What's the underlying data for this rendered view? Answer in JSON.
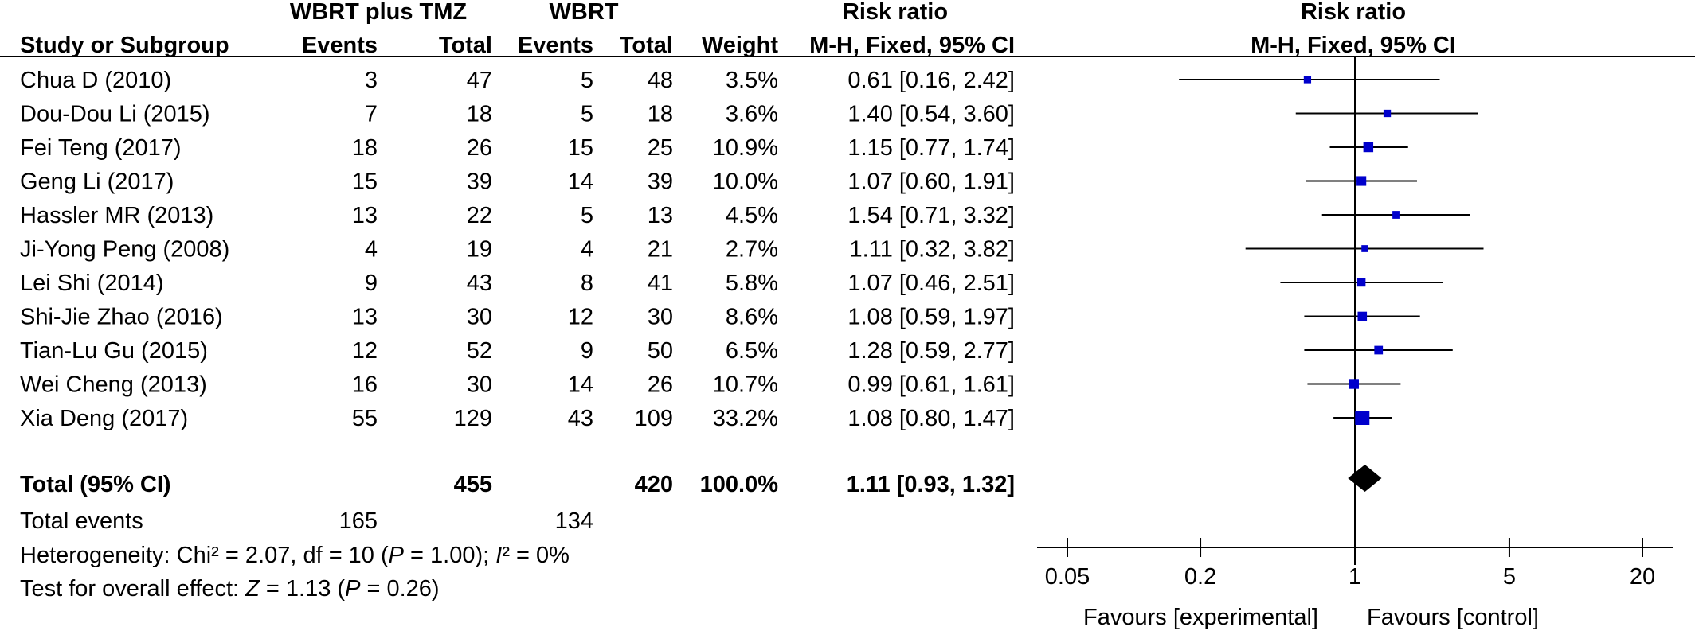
{
  "header": {
    "group1": "WBRT plus TMZ",
    "group2": "WBRT",
    "rr_table": "Risk ratio",
    "rr_plot": "Risk ratio",
    "study": "Study or Subgroup",
    "events1": "Events",
    "total1": "Total",
    "events2": "Events",
    "total2": "Total",
    "weight": "Weight",
    "method_table": "M-H, Fixed, 95% CI",
    "method_plot": "M-H, Fixed, 95% CI"
  },
  "chart_data": {
    "type": "forest",
    "x_scale": "log",
    "xlim": [
      0.05,
      20
    ],
    "ticks": [
      {
        "value": 0.05,
        "label": "0.05"
      },
      {
        "value": 0.2,
        "label": "0.2"
      },
      {
        "value": 1,
        "label": "1"
      },
      {
        "value": 5,
        "label": "5"
      },
      {
        "value": 20,
        "label": "20"
      }
    ],
    "favours_left": "Favours [experimental]",
    "favours_right": "Favours [control]",
    "marker_color": "#0000cc",
    "studies": [
      {
        "name": "Chua D (2010)",
        "e1": "3",
        "t1": "47",
        "e2": "5",
        "t2": "48",
        "weight_label": "3.5%",
        "ci_label": "0.61 [0.16, 2.42]",
        "rr": 0.61,
        "lo": 0.16,
        "hi": 2.42,
        "weight": 3.5
      },
      {
        "name": "Dou-Dou Li (2015)",
        "e1": "7",
        "t1": "18",
        "e2": "5",
        "t2": "18",
        "weight_label": "3.6%",
        "ci_label": "1.40 [0.54, 3.60]",
        "rr": 1.4,
        "lo": 0.54,
        "hi": 3.6,
        "weight": 3.6
      },
      {
        "name": "Fei Teng (2017)",
        "e1": "18",
        "t1": "26",
        "e2": "15",
        "t2": "25",
        "weight_label": "10.9%",
        "ci_label": "1.15 [0.77, 1.74]",
        "rr": 1.15,
        "lo": 0.77,
        "hi": 1.74,
        "weight": 10.9
      },
      {
        "name": "Geng Li (2017)",
        "e1": "15",
        "t1": "39",
        "e2": "14",
        "t2": "39",
        "weight_label": "10.0%",
        "ci_label": "1.07 [0.60, 1.91]",
        "rr": 1.07,
        "lo": 0.6,
        "hi": 1.91,
        "weight": 10.0
      },
      {
        "name": "Hassler MR (2013)",
        "e1": "13",
        "t1": "22",
        "e2": "5",
        "t2": "13",
        "weight_label": "4.5%",
        "ci_label": "1.54 [0.71, 3.32]",
        "rr": 1.54,
        "lo": 0.71,
        "hi": 3.32,
        "weight": 4.5
      },
      {
        "name": "Ji-Yong Peng (2008)",
        "e1": "4",
        "t1": "19",
        "e2": "4",
        "t2": "21",
        "weight_label": "2.7%",
        "ci_label": "1.11 [0.32, 3.82]",
        "rr": 1.11,
        "lo": 0.32,
        "hi": 3.82,
        "weight": 2.7
      },
      {
        "name": "Lei Shi (2014)",
        "e1": "9",
        "t1": "43",
        "e2": "8",
        "t2": "41",
        "weight_label": "5.8%",
        "ci_label": "1.07 [0.46, 2.51]",
        "rr": 1.07,
        "lo": 0.46,
        "hi": 2.51,
        "weight": 5.8
      },
      {
        "name": "Shi-Jie Zhao (2016)",
        "e1": "13",
        "t1": "30",
        "e2": "12",
        "t2": "30",
        "weight_label": "8.6%",
        "ci_label": "1.08 [0.59, 1.97]",
        "rr": 1.08,
        "lo": 0.59,
        "hi": 1.97,
        "weight": 8.6
      },
      {
        "name": "Tian-Lu Gu (2015)",
        "e1": "12",
        "t1": "52",
        "e2": "9",
        "t2": "50",
        "weight_label": "6.5%",
        "ci_label": "1.28 [0.59, 2.77]",
        "rr": 1.28,
        "lo": 0.59,
        "hi": 2.77,
        "weight": 6.5
      },
      {
        "name": "Wei Cheng (2013)",
        "e1": "16",
        "t1": "30",
        "e2": "14",
        "t2": "26",
        "weight_label": "10.7%",
        "ci_label": "0.99 [0.61, 1.61]",
        "rr": 0.99,
        "lo": 0.61,
        "hi": 1.61,
        "weight": 10.7
      },
      {
        "name": "Xia Deng (2017)",
        "e1": "55",
        "t1": "129",
        "e2": "43",
        "t2": "109",
        "weight_label": "33.2%",
        "ci_label": "1.08 [0.80, 1.47]",
        "rr": 1.08,
        "lo": 0.8,
        "hi": 1.47,
        "weight": 33.2
      }
    ],
    "total": {
      "name": "Total (95% CI)",
      "t1": "455",
      "t2": "420",
      "weight_label": "100.0%",
      "ci_label": "1.11 [0.93, 1.32]",
      "rr": 1.11,
      "lo": 0.93,
      "hi": 1.32
    },
    "total_events": {
      "label": "Total events",
      "e1": "165",
      "e2": "134"
    },
    "heterogeneity": {
      "prefix": "Heterogeneity: Chi² = 2.07, df = 10 (",
      "p_symbol": "P",
      "p_rest": " = 1.00); ",
      "i_symbol": "I",
      "i_rest": "² = 0%"
    },
    "overall_effect": {
      "prefix": "Test for overall effect: ",
      "z_symbol": "Z",
      "z_rest": " = 1.13 (",
      "p_symbol": "P",
      "p_rest": " = 0.26)"
    }
  }
}
